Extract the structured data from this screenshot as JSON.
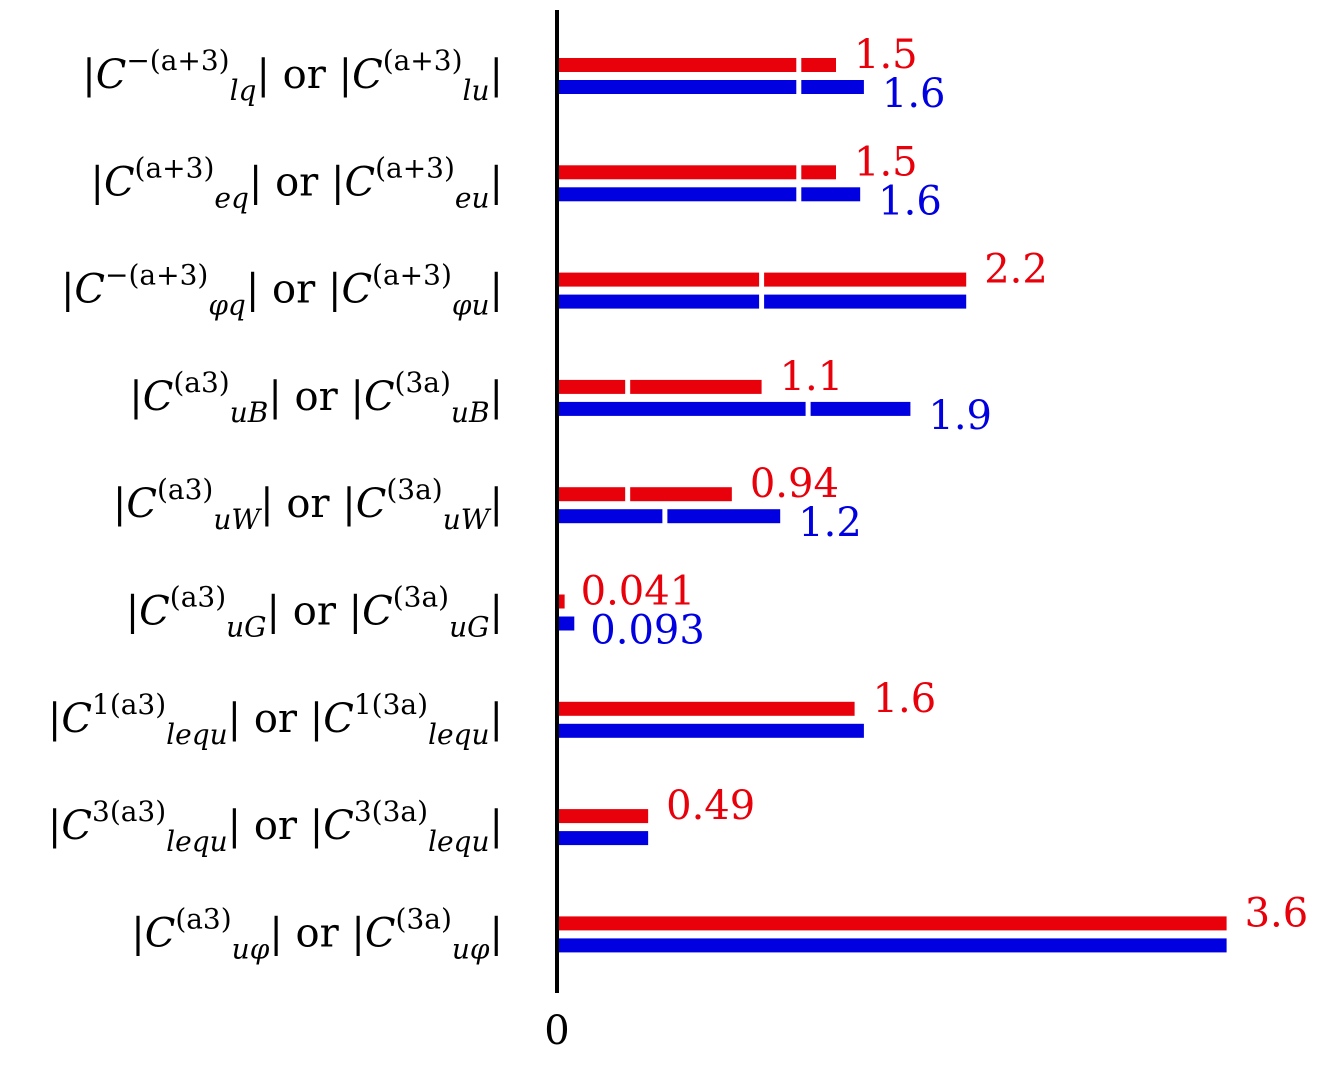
{
  "chart_data": {
    "type": "bar",
    "orientation": "horizontal",
    "grid": false,
    "legend": "none",
    "x_tick_labels": [
      "0"
    ],
    "xlim": [
      0,
      3.6
    ],
    "colors": {
      "series_a": "#e8000b",
      "series_b": "#0000e0",
      "axis": "#000000",
      "gap": "#ffffff"
    },
    "categories": [
      {
        "label_parts": [
          [
            "|"
          ],
          [
            "C",
            "it"
          ],
          [
            "−(a+3)",
            "sup"
          ],
          [
            "lq",
            "sub"
          ],
          [
            "| or |"
          ],
          [
            "C",
            "it"
          ],
          [
            "(a+3)",
            "sup"
          ],
          [
            "lu",
            "sub"
          ],
          [
            "|"
          ]
        ]
      },
      {
        "label_parts": [
          [
            "|"
          ],
          [
            "C",
            "it"
          ],
          [
            "(a+3)",
            "sup"
          ],
          [
            "eq",
            "sub"
          ],
          [
            "| or |"
          ],
          [
            "C",
            "it"
          ],
          [
            "(a+3)",
            "sup"
          ],
          [
            "eu",
            "sub"
          ],
          [
            "|"
          ]
        ]
      },
      {
        "label_parts": [
          [
            "|"
          ],
          [
            "C",
            "it"
          ],
          [
            "−(a+3)",
            "sup"
          ],
          [
            "φq",
            "sub"
          ],
          [
            "| or |"
          ],
          [
            "C",
            "it"
          ],
          [
            "(a+3)",
            "sup"
          ],
          [
            "φu",
            "sub"
          ],
          [
            "|"
          ]
        ]
      },
      {
        "label_parts": [
          [
            "|"
          ],
          [
            "C",
            "it"
          ],
          [
            "(a3)",
            "sup"
          ],
          [
            "uB",
            "sub"
          ],
          [
            "| or |"
          ],
          [
            "C",
            "it"
          ],
          [
            "(3a)",
            "sup"
          ],
          [
            "uB",
            "sub"
          ],
          [
            "|"
          ]
        ]
      },
      {
        "label_parts": [
          [
            "|"
          ],
          [
            "C",
            "it"
          ],
          [
            "(a3)",
            "sup"
          ],
          [
            "uW",
            "sub"
          ],
          [
            "| or |"
          ],
          [
            "C",
            "it"
          ],
          [
            "(3a)",
            "sup"
          ],
          [
            "uW",
            "sub"
          ],
          [
            "|"
          ]
        ]
      },
      {
        "label_parts": [
          [
            "|"
          ],
          [
            "C",
            "it"
          ],
          [
            "(a3)",
            "sup"
          ],
          [
            "uG",
            "sub"
          ],
          [
            "| or |"
          ],
          [
            "C",
            "it"
          ],
          [
            "(3a)",
            "sup"
          ],
          [
            "uG",
            "sub"
          ],
          [
            "|"
          ]
        ]
      },
      {
        "label_parts": [
          [
            "|"
          ],
          [
            "C",
            "it"
          ],
          [
            "1(a3)",
            "sup"
          ],
          [
            "lequ",
            "sub"
          ],
          [
            "| or |"
          ],
          [
            "C",
            "it"
          ],
          [
            "1(3a)",
            "sup"
          ],
          [
            "lequ",
            "sub"
          ],
          [
            "|"
          ]
        ]
      },
      {
        "label_parts": [
          [
            "|"
          ],
          [
            "C",
            "it"
          ],
          [
            "3(a3)",
            "sup"
          ],
          [
            "lequ",
            "sub"
          ],
          [
            "| or |"
          ],
          [
            "C",
            "it"
          ],
          [
            "3(3a)",
            "sup"
          ],
          [
            "lequ",
            "sub"
          ],
          [
            "|"
          ]
        ]
      },
      {
        "label_parts": [
          [
            "|"
          ],
          [
            "C",
            "it"
          ],
          [
            "(a3)",
            "sup"
          ],
          [
            "uφ",
            "sub"
          ],
          [
            "| or |"
          ],
          [
            "C",
            "it"
          ],
          [
            "(3a)",
            "sup"
          ],
          [
            "uφ",
            "sub"
          ],
          [
            "|"
          ]
        ]
      }
    ],
    "series": [
      {
        "values": [
          1.5,
          1.5,
          2.2,
          1.1,
          0.94,
          0.041,
          1.6,
          0.49,
          3.6
        ],
        "value_labels": [
          "1.5",
          "1.5",
          "2.2",
          "1.1",
          "0.94",
          "0.041",
          "1.6",
          "0.49",
          "3.6"
        ],
        "gap_at": [
          1.3,
          1.3,
          1.1,
          0.38,
          0.38,
          null,
          null,
          null,
          null
        ]
      },
      {
        "values": [
          1.65,
          1.63,
          2.2,
          1.9,
          1.2,
          0.093,
          1.65,
          0.49,
          3.6
        ],
        "value_labels": [
          "1.6",
          "1.6",
          "",
          "1.9",
          "1.2",
          "0.093",
          "",
          "",
          ""
        ],
        "gap_at": [
          1.3,
          1.3,
          1.1,
          1.35,
          0.58,
          null,
          null,
          null,
          null
        ]
      }
    ]
  }
}
